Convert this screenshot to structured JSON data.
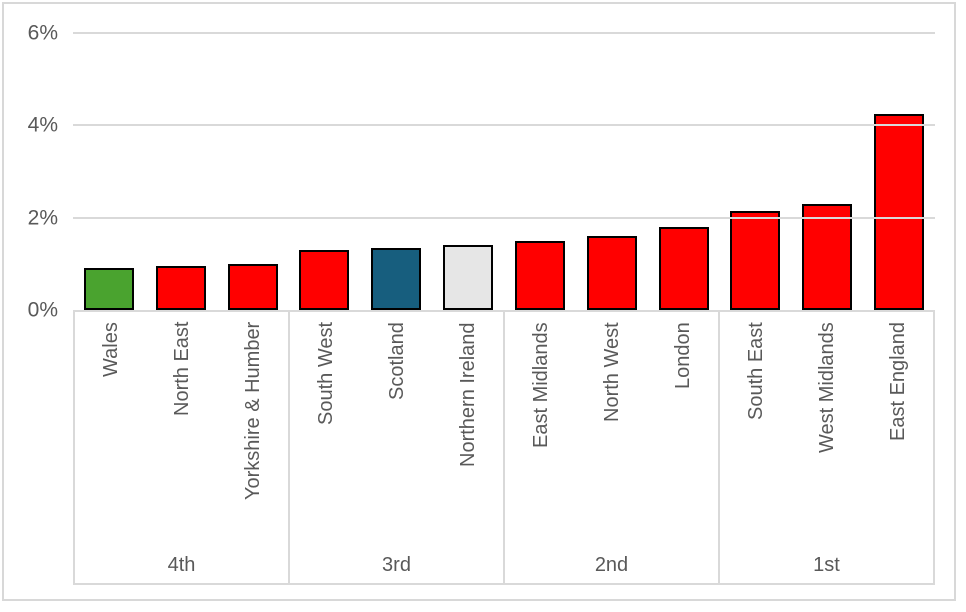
{
  "chart_data": {
    "type": "bar",
    "title": "",
    "xlabel": "",
    "ylabel": "",
    "y_unit": "%",
    "ylim": [
      0,
      6
    ],
    "grid": true,
    "legend": "none",
    "yticks": [
      {
        "value": 0,
        "label": "0%"
      },
      {
        "value": 2,
        "label": "2%"
      },
      {
        "value": 4,
        "label": "4%"
      },
      {
        "value": 6,
        "label": "6%"
      }
    ],
    "groups": [
      {
        "label": "4th",
        "bars": [
          {
            "category": "Wales",
            "value": 0.9,
            "color": "#4AA32F"
          },
          {
            "category": "North East",
            "value": 0.95,
            "color": "#FF0000"
          },
          {
            "category": "Yorkshire & Humber",
            "value": 1.0,
            "color": "#FF0000"
          }
        ]
      },
      {
        "label": "3rd",
        "bars": [
          {
            "category": "South West",
            "value": 1.3,
            "color": "#FF0000"
          },
          {
            "category": "Scotland",
            "value": 1.35,
            "color": "#175E7E"
          },
          {
            "category": "Northern Ireland",
            "value": 1.4,
            "color": "#E6E6E6"
          }
        ]
      },
      {
        "label": "2nd",
        "bars": [
          {
            "category": "East Midlands",
            "value": 1.5,
            "color": "#FF0000"
          },
          {
            "category": "North West",
            "value": 1.6,
            "color": "#FF0000"
          },
          {
            "category": "London",
            "value": 1.8,
            "color": "#FF0000"
          }
        ]
      },
      {
        "label": "1st",
        "bars": [
          {
            "category": "South East",
            "value": 2.15,
            "color": "#FF0000"
          },
          {
            "category": "West Midlands",
            "value": 2.3,
            "color": "#FF0000"
          },
          {
            "category": "East England",
            "value": 4.25,
            "color": "#FF0000"
          }
        ]
      }
    ],
    "colors": {
      "default_bar": "#FF0000",
      "wales_bar": "#4AA32F",
      "scotland_bar": "#175E7E",
      "northern_ireland_bar": "#E6E6E6",
      "bar_border": "#000000",
      "gridline": "#D9D9D9",
      "axis_text": "#595959",
      "frame_border": "#D8D8D8"
    }
  }
}
